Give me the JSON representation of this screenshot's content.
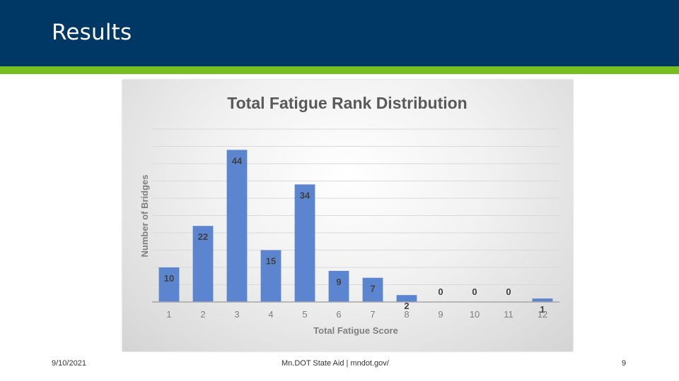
{
  "slide": {
    "title": "Results"
  },
  "footer": {
    "date": "9/10/2021",
    "center": "Mn.DOT State Aid  |   mndot.gov/",
    "page_number": "9"
  },
  "colors": {
    "header": "#003865",
    "accent": "#78be20",
    "bar": "#5b86cf"
  },
  "chart_data": {
    "type": "bar",
    "title": "Total Fatigue Rank Distribution",
    "xlabel": "Total Fatigue Score",
    "ylabel": "Number of Bridges",
    "categories": [
      "1",
      "2",
      "3",
      "4",
      "5",
      "6",
      "7",
      "8",
      "9",
      "10",
      "11",
      "12"
    ],
    "values": [
      10,
      22,
      44,
      15,
      34,
      9,
      7,
      2,
      0,
      0,
      0,
      1
    ],
    "data_labels": true,
    "ylim": [
      0,
      50
    ],
    "gridlines": true,
    "legend": "none"
  }
}
